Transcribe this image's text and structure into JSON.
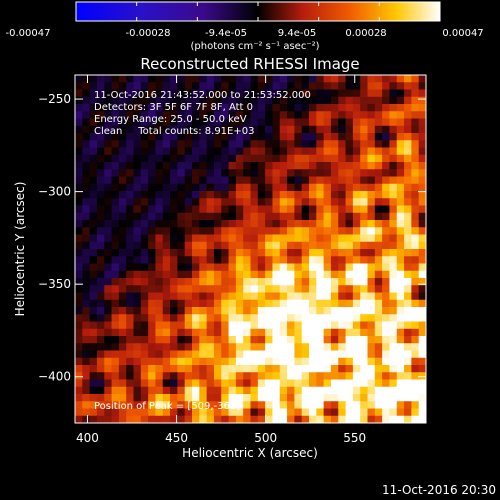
{
  "colorbar": {
    "tick_labels": [
      "-0.00047",
      "-0.00028",
      "-9.4e-05",
      "9.4e-05",
      "0.00028",
      "0.00047"
    ],
    "unit_label": "(photons cm⁻² s⁻¹ asec⁻²)",
    "range": [
      -0.00047,
      0.00047
    ]
  },
  "title": "Reconstructed RHESSI Image",
  "info_lines": [
    "11-Oct-2016 21:43:52.000 to 21:53:52.000",
    "Detectors: 3F 5F 6F 7F 8F, Att 0",
    "Energy Range: 25.0 - 50.0 keV",
    "Clean     Total counts: 8.91E+03"
  ],
  "peak_text": "Position of Peak = [509,-368]",
  "footer_timestamp": "11-Oct-2016 20:30",
  "chart_data": {
    "type": "heatmap",
    "title": "Reconstructed RHESSI Image",
    "xlabel": "Heliocentric X (arcsec)",
    "ylabel": "Heliocentric Y (arcsec)",
    "xlim": [
      393,
      590
    ],
    "ylim": [
      -425,
      -237
    ],
    "x_ticks": [
      400,
      450,
      500,
      550
    ],
    "y_ticks": [
      -250,
      -300,
      -350,
      -400
    ],
    "x_tick_labels": [
      "400",
      "450",
      "500",
      "550"
    ],
    "y_tick_labels": [
      "−250",
      "−300",
      "−350",
      "−400"
    ],
    "peak_position": [
      509,
      -368
    ],
    "colormap": [
      "#0000ff",
      "#3a0a8a",
      "#000000",
      "#b41c0c",
      "#f05a00",
      "#ffc800",
      "#ffffff"
    ]
  }
}
